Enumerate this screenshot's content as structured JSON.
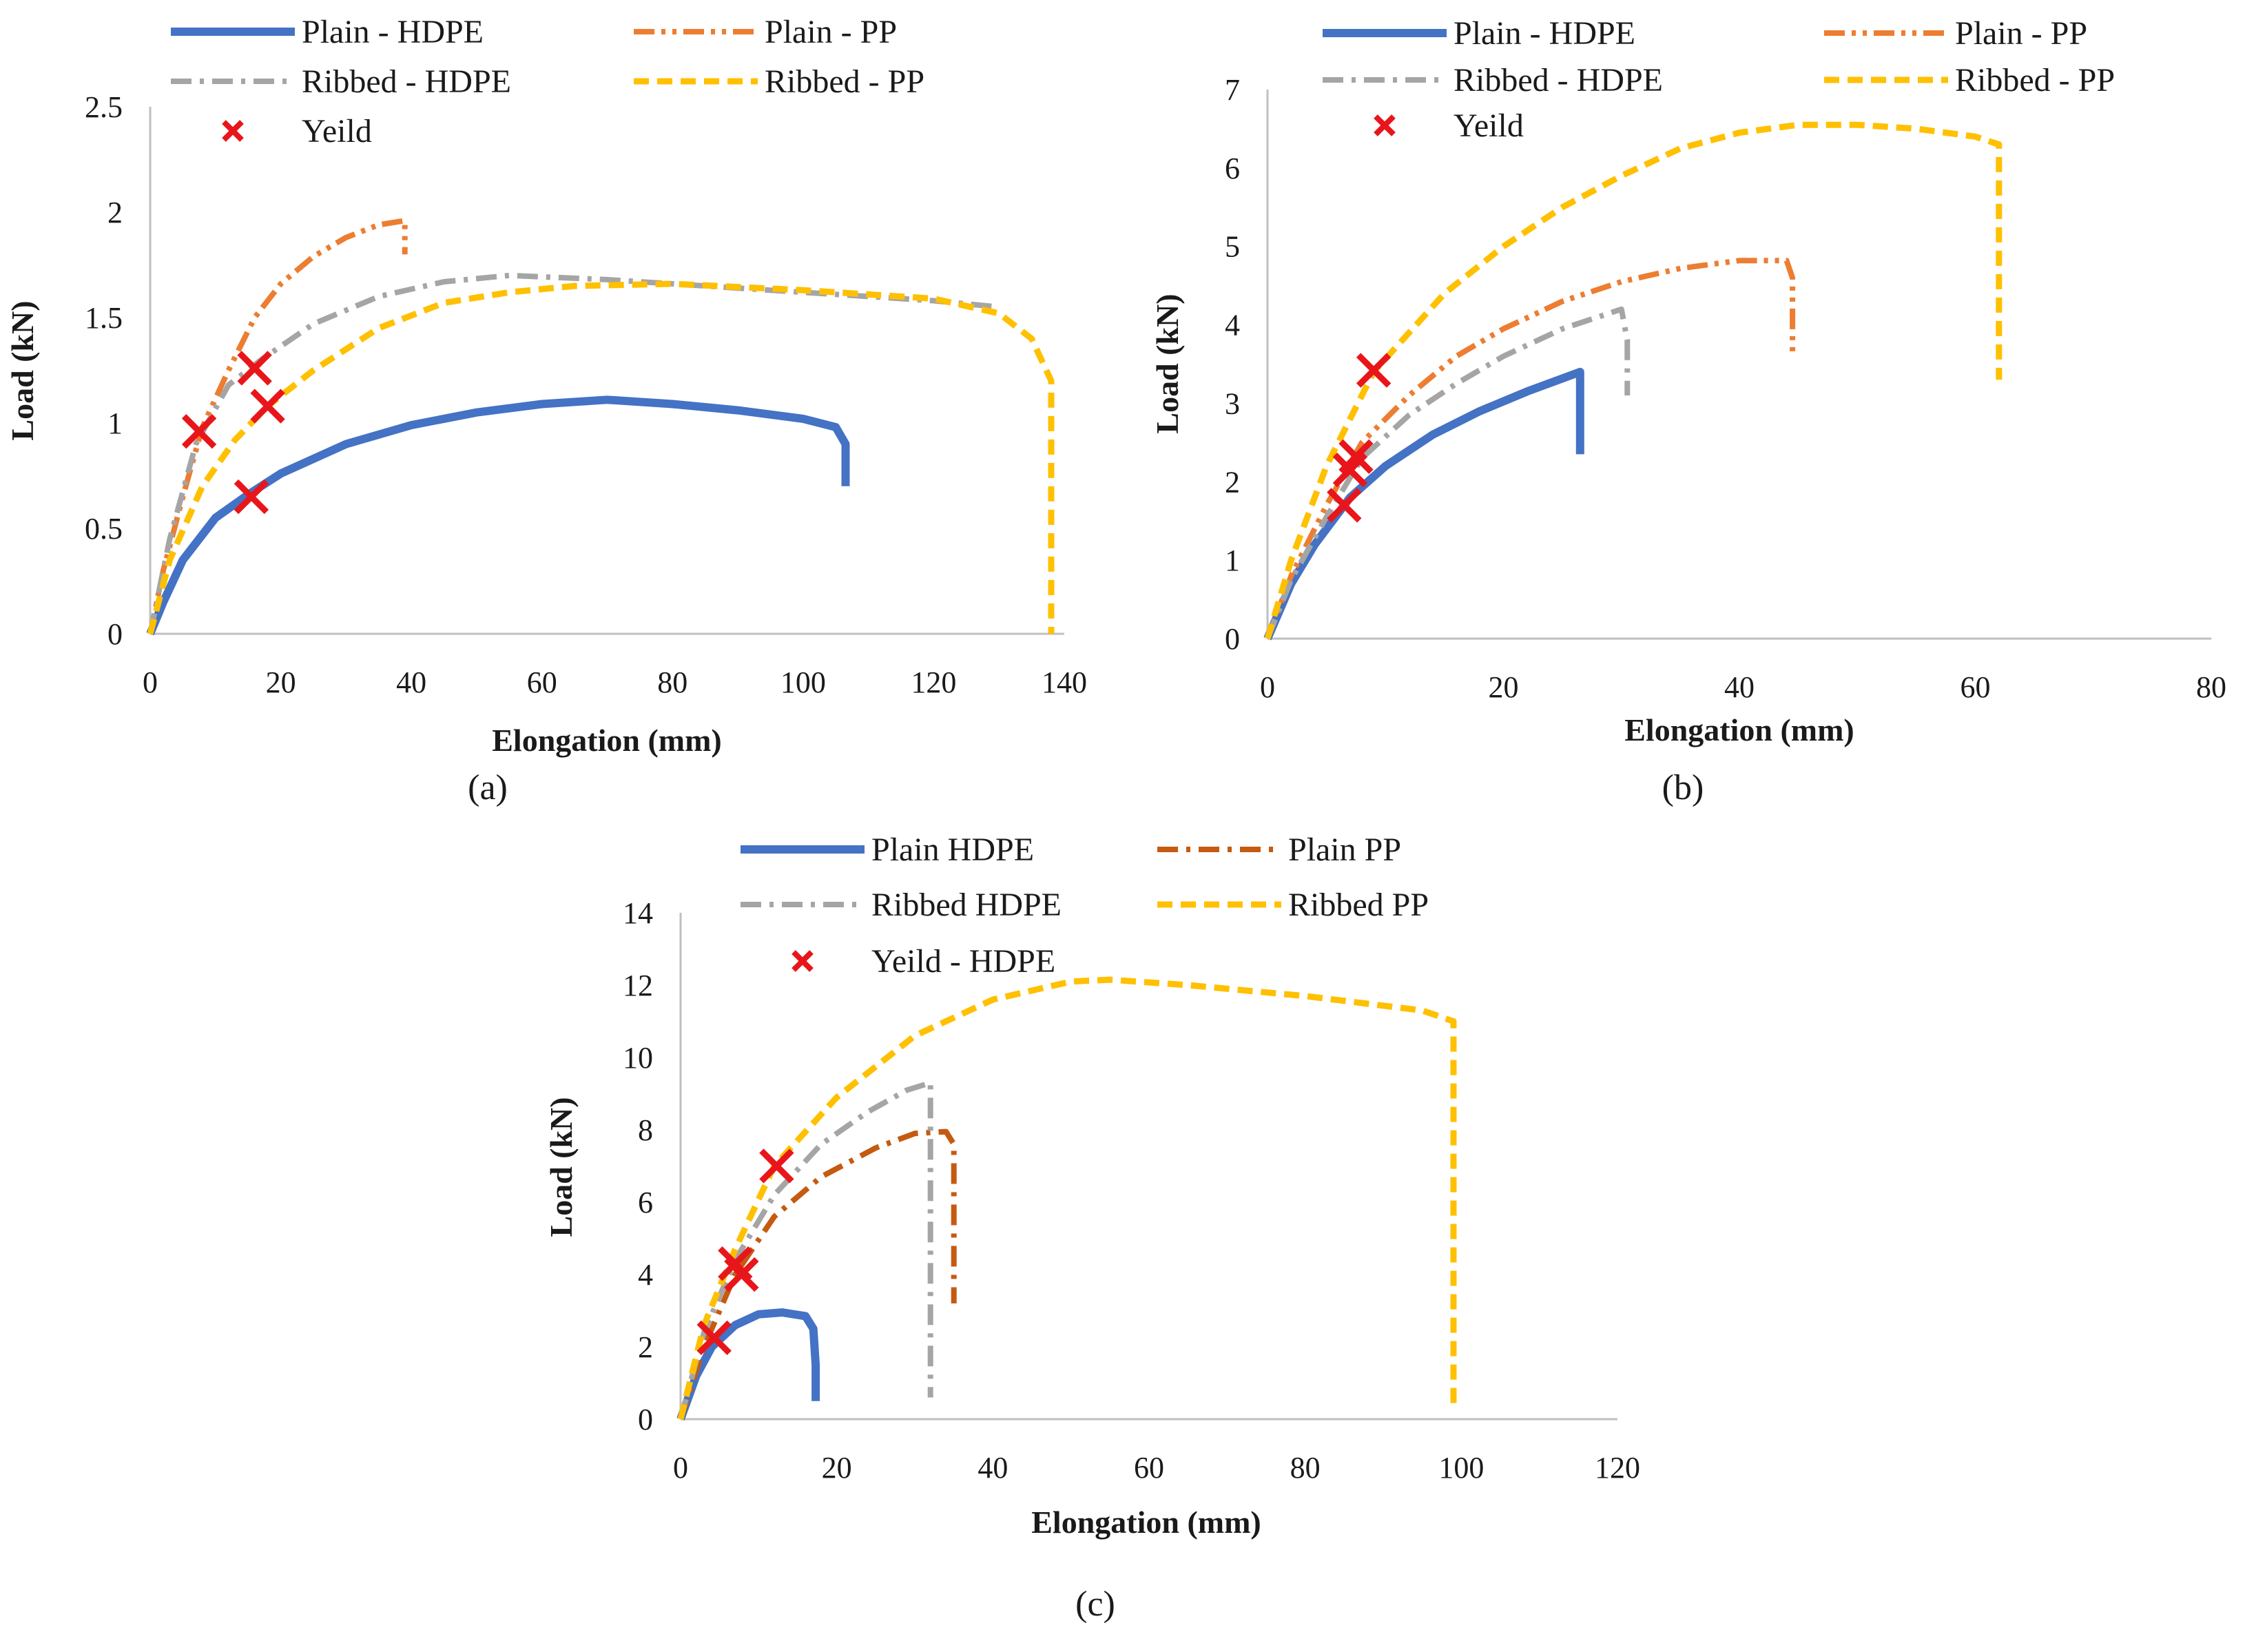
{
  "chart_data": [
    {
      "type": "line",
      "id": "a",
      "caption": "(a)",
      "xlabel": "Elongation (mm)",
      "ylabel": "Load (kN)",
      "xlim": [
        0,
        140
      ],
      "ylim": [
        0,
        2.5
      ],
      "xticks": [
        0,
        20,
        40,
        60,
        80,
        100,
        120,
        140
      ],
      "yticks": [
        0,
        0.5,
        1,
        1.5,
        2,
        2.5
      ],
      "ytick_labels": [
        "0",
        "0.5",
        "1",
        "1.5",
        "2",
        "2.5"
      ],
      "legend_location": "top",
      "series": [
        {
          "name": "Plain - HDPE",
          "style": "solid",
          "color": "#4472c4",
          "points": [
            [
              0,
              0
            ],
            [
              2,
              0.15
            ],
            [
              5,
              0.35
            ],
            [
              10,
              0.55
            ],
            [
              15,
              0.66
            ],
            [
              20,
              0.76
            ],
            [
              30,
              0.9
            ],
            [
              40,
              0.99
            ],
            [
              50,
              1.05
            ],
            [
              60,
              1.09
            ],
            [
              70,
              1.11
            ],
            [
              80,
              1.09
            ],
            [
              90,
              1.06
            ],
            [
              100,
              1.02
            ],
            [
              105,
              0.98
            ],
            [
              106.5,
              0.9
            ],
            [
              106.5,
              0.7
            ]
          ]
        },
        {
          "name": "Plain - PP",
          "style": "dashdotdot",
          "color": "#ed7d31",
          "points": [
            [
              0,
              0
            ],
            [
              2,
              0.3
            ],
            [
              5,
              0.65
            ],
            [
              8,
              0.98
            ],
            [
              12,
              1.25
            ],
            [
              16,
              1.5
            ],
            [
              20,
              1.66
            ],
            [
              25,
              1.79
            ],
            [
              30,
              1.88
            ],
            [
              35,
              1.94
            ],
            [
              39,
              1.96
            ],
            [
              39,
              1.8
            ]
          ]
        },
        {
          "name": "Ribbed - HDPE",
          "style": "dashdot",
          "color": "#a5a5a5",
          "points": [
            [
              0,
              0
            ],
            [
              3,
              0.45
            ],
            [
              7,
              0.9
            ],
            [
              12,
              1.18
            ],
            [
              17,
              1.3
            ],
            [
              25,
              1.47
            ],
            [
              35,
              1.6
            ],
            [
              45,
              1.67
            ],
            [
              55,
              1.7
            ],
            [
              70,
              1.68
            ],
            [
              85,
              1.65
            ],
            [
              100,
              1.62
            ],
            [
              120,
              1.58
            ],
            [
              130,
              1.55
            ]
          ]
        },
        {
          "name": "Ribbed - PP",
          "style": "dashed",
          "color": "#ffc000",
          "points": [
            [
              0,
              0
            ],
            [
              3,
              0.35
            ],
            [
              8,
              0.7
            ],
            [
              13,
              0.92
            ],
            [
              18,
              1.08
            ],
            [
              25,
              1.25
            ],
            [
              35,
              1.45
            ],
            [
              45,
              1.57
            ],
            [
              55,
              1.62
            ],
            [
              65,
              1.65
            ],
            [
              80,
              1.66
            ],
            [
              100,
              1.63
            ],
            [
              120,
              1.59
            ],
            [
              130,
              1.52
            ],
            [
              135,
              1.4
            ],
            [
              138,
              1.2
            ],
            [
              138,
              0
            ]
          ]
        }
      ],
      "yield_label": "Yeild",
      "yield_points": [
        [
          7.5,
          0.96
        ],
        [
          16,
          1.26
        ],
        [
          18,
          1.08
        ],
        [
          15.5,
          0.65
        ]
      ]
    },
    {
      "type": "line",
      "id": "b",
      "caption": "(b)",
      "xlabel": "Elongation (mm)",
      "ylabel": "Load (kN)",
      "xlim": [
        0,
        80
      ],
      "ylim": [
        0,
        7
      ],
      "xticks": [
        0,
        20,
        40,
        60,
        80
      ],
      "yticks": [
        0,
        1,
        2,
        3,
        4,
        5,
        6,
        7
      ],
      "ytick_labels": [
        "0",
        "1",
        "2",
        "3",
        "4",
        "5",
        "6",
        "7"
      ],
      "legend_location": "top",
      "series": [
        {
          "name": "Plain - HDPE",
          "style": "solid",
          "color": "#4472c4",
          "points": [
            [
              0,
              0
            ],
            [
              2,
              0.7
            ],
            [
              4,
              1.2
            ],
            [
              7,
              1.8
            ],
            [
              10,
              2.2
            ],
            [
              14,
              2.6
            ],
            [
              18,
              2.9
            ],
            [
              22,
              3.15
            ],
            [
              26.5,
              3.4
            ],
            [
              26.5,
              2.35
            ]
          ]
        },
        {
          "name": "Plain - PP",
          "style": "dashdotdot",
          "color": "#ed7d31",
          "points": [
            [
              0,
              0
            ],
            [
              2,
              0.8
            ],
            [
              5,
              1.7
            ],
            [
              8,
              2.5
            ],
            [
              12,
              3.1
            ],
            [
              16,
              3.6
            ],
            [
              20,
              3.95
            ],
            [
              25,
              4.3
            ],
            [
              30,
              4.55
            ],
            [
              35,
              4.72
            ],
            [
              40,
              4.82
            ],
            [
              44,
              4.82
            ],
            [
              44.5,
              4.6
            ],
            [
              44.5,
              3.6
            ]
          ]
        },
        {
          "name": "Ribbed - HDPE",
          "style": "dashdot",
          "color": "#a5a5a5",
          "points": [
            [
              0,
              0
            ],
            [
              2,
              0.75
            ],
            [
              5,
              1.55
            ],
            [
              8,
              2.3
            ],
            [
              12,
              2.85
            ],
            [
              16,
              3.25
            ],
            [
              20,
              3.6
            ],
            [
              25,
              3.95
            ],
            [
              30,
              4.2
            ],
            [
              30.5,
              3.8
            ],
            [
              30.5,
              3.1
            ]
          ]
        },
        {
          "name": "Ribbed - PP",
          "style": "dashed",
          "color": "#ffc000",
          "points": [
            [
              0,
              0
            ],
            [
              2,
              1.0
            ],
            [
              5,
              2.2
            ],
            [
              9,
              3.4
            ],
            [
              15,
              4.4
            ],
            [
              20,
              5.0
            ],
            [
              25,
              5.5
            ],
            [
              30,
              5.9
            ],
            [
              35,
              6.25
            ],
            [
              40,
              6.45
            ],
            [
              45,
              6.55
            ],
            [
              50,
              6.55
            ],
            [
              55,
              6.5
            ],
            [
              60,
              6.4
            ],
            [
              62,
              6.3
            ],
            [
              62,
              3.3
            ]
          ]
        }
      ],
      "yield_label": "Yeild",
      "yield_points": [
        [
          9,
          3.42
        ],
        [
          7.5,
          2.32
        ],
        [
          7,
          2.15
        ],
        [
          6.5,
          1.7
        ]
      ]
    },
    {
      "type": "line",
      "id": "c",
      "caption": "(c)",
      "xlabel": "Elongation (mm)",
      "ylabel": "Load  (kN)",
      "xlim": [
        0,
        120
      ],
      "ylim": [
        0,
        14
      ],
      "xticks": [
        0,
        20,
        40,
        60,
        80,
        100,
        120
      ],
      "yticks": [
        0,
        2,
        4,
        6,
        8,
        10,
        12,
        14
      ],
      "ytick_labels": [
        "0",
        "2",
        "4",
        "6",
        "8",
        "10",
        "12",
        "14"
      ],
      "legend_location": "top",
      "series": [
        {
          "name": "Plain HDPE",
          "style": "solid",
          "color": "#4472c4",
          "points": [
            [
              0,
              0
            ],
            [
              2,
              1.2
            ],
            [
              4,
              2.0
            ],
            [
              7,
              2.6
            ],
            [
              10,
              2.9
            ],
            [
              13,
              2.95
            ],
            [
              16,
              2.85
            ],
            [
              17,
              2.5
            ],
            [
              17.3,
              1.5
            ],
            [
              17.3,
              0.5
            ]
          ]
        },
        {
          "name": "Plain PP",
          "style": "dashdot",
          "color": "#c55a11",
          "points": [
            [
              0,
              0
            ],
            [
              3,
              2.0
            ],
            [
              7,
              4.0
            ],
            [
              12,
              5.6
            ],
            [
              18,
              6.7
            ],
            [
              25,
              7.5
            ],
            [
              30,
              7.9
            ],
            [
              34,
              7.95
            ],
            [
              35,
              7.6
            ],
            [
              35,
              3.2
            ]
          ]
        },
        {
          "name": "Ribbed HDPE",
          "style": "dashdot",
          "color": "#a5a5a5",
          "points": [
            [
              0,
              0
            ],
            [
              3,
              2.4
            ],
            [
              7,
              4.4
            ],
            [
              12,
              6.2
            ],
            [
              18,
              7.6
            ],
            [
              24,
              8.5
            ],
            [
              29,
              9.1
            ],
            [
              32,
              9.3
            ],
            [
              32,
              8.0
            ],
            [
              32,
              0.6
            ]
          ]
        },
        {
          "name": "Ribbed PP",
          "style": "dashed",
          "color": "#ffc000",
          "points": [
            [
              0,
              0
            ],
            [
              3,
              2.6
            ],
            [
              7,
              4.7
            ],
            [
              12,
              7.0
            ],
            [
              20,
              8.9
            ],
            [
              30,
              10.6
            ],
            [
              40,
              11.6
            ],
            [
              50,
              12.1
            ],
            [
              55,
              12.15
            ],
            [
              65,
              12.0
            ],
            [
              80,
              11.7
            ],
            [
              95,
              11.3
            ],
            [
              99,
              11.0
            ],
            [
              99,
              0.3
            ]
          ]
        }
      ],
      "yield_label": "Yeild - HDPE",
      "yield_points": [
        [
          4.3,
          2.25
        ],
        [
          7,
          4.3
        ],
        [
          7.8,
          4.0
        ],
        [
          12.3,
          7.0
        ]
      ]
    }
  ]
}
